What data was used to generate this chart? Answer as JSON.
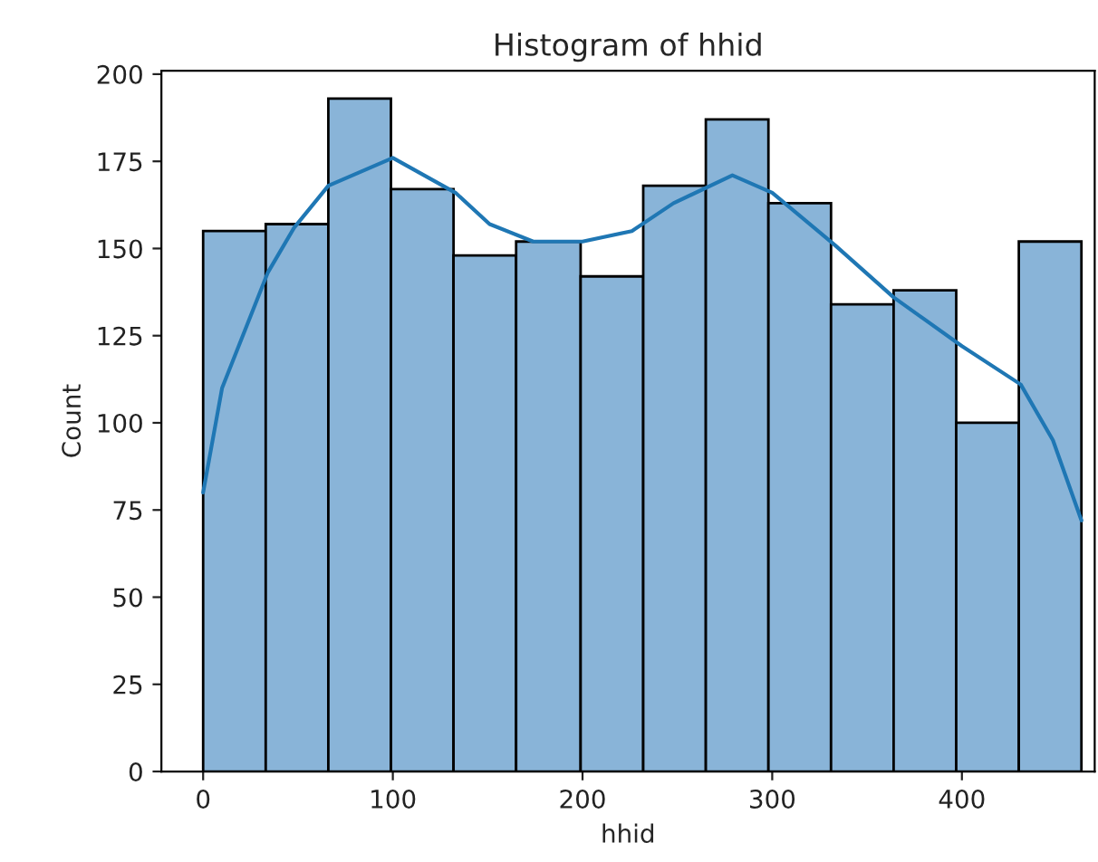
{
  "chart_data": {
    "type": "histogram",
    "title": "Histogram of hhid",
    "xlabel": "hhid",
    "ylabel": "Count",
    "bins": [
      0,
      33,
      66,
      99,
      132,
      165,
      199,
      232,
      265,
      298,
      331,
      364,
      397,
      430,
      463
    ],
    "series": [
      {
        "color": "#89b4d8",
        "values": [
          155,
          157,
          193,
          167,
          148,
          152,
          142,
          168,
          187,
          163,
          134,
          138,
          100,
          152
        ]
      },
      {
        "type": "line",
        "color": "#1f77b4",
        "x": [
          0,
          10,
          34,
          48,
          66,
          100,
          133,
          151,
          174,
          200,
          226,
          248,
          279,
          300,
          333,
          364,
          400,
          431,
          448,
          463
        ],
        "values": [
          80,
          110,
          143,
          156,
          168,
          176,
          166,
          157,
          152,
          152,
          155,
          163,
          171,
          166,
          151,
          136,
          122,
          111,
          95,
          72
        ]
      }
    ],
    "xlim": [
      -22,
      470
    ],
    "ylim": [
      0,
      201
    ],
    "xticks": [
      0,
      100,
      200,
      300,
      400
    ],
    "yticks": [
      0,
      25,
      50,
      75,
      100,
      125,
      150,
      175,
      200
    ],
    "grid": false
  }
}
